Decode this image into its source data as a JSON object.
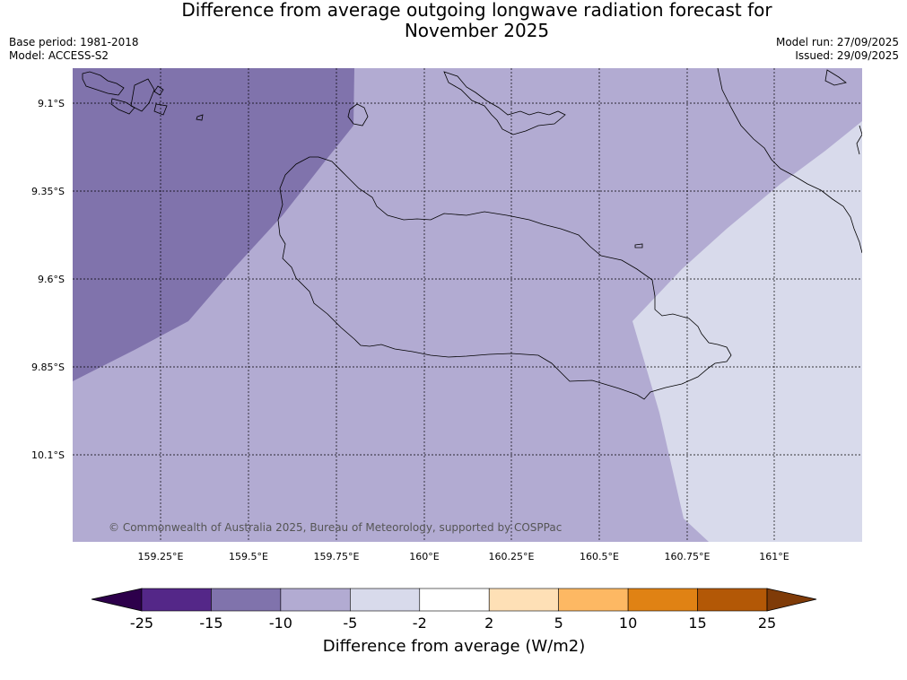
{
  "title_line1": "Difference from average outgoing longwave radiation forecast for",
  "title_line2": "November 2025",
  "meta": {
    "base_period": "Base period: 1981-2018",
    "model": "Model: ACCESS-S2",
    "model_run": "Model run: 27/09/2025",
    "issued": "Issued: 29/09/2025"
  },
  "map": {
    "lat_labels": [
      "9.1°S",
      "9.35°S",
      "9.6°S",
      "9.85°S",
      "10.1°S"
    ],
    "lon_labels": [
      "159.25°E",
      "159.5°E",
      "159.75°E",
      "160°E",
      "160.25°E",
      "160.5°E",
      "160.75°E",
      "161°E"
    ],
    "copyright": "© Commonwealth of Australia 2025, Bureau of Meteorology, supported by COSPPac"
  },
  "colorbar": {
    "title": "Difference from average (W/m2)",
    "ticks": [
      "-25",
      "-15",
      "-10",
      "-5",
      "-2",
      "2",
      "5",
      "10",
      "15",
      "25"
    ],
    "colors": {
      "below": "#2d004b",
      "bins": [
        "#542788",
        "#8073ac",
        "#b2abd2",
        "#d8daeb",
        "#ffffff",
        "#fee0b6",
        "#fdb863",
        "#e08214",
        "#b35806"
      ],
      "above": "#7f3b08"
    }
  }
}
